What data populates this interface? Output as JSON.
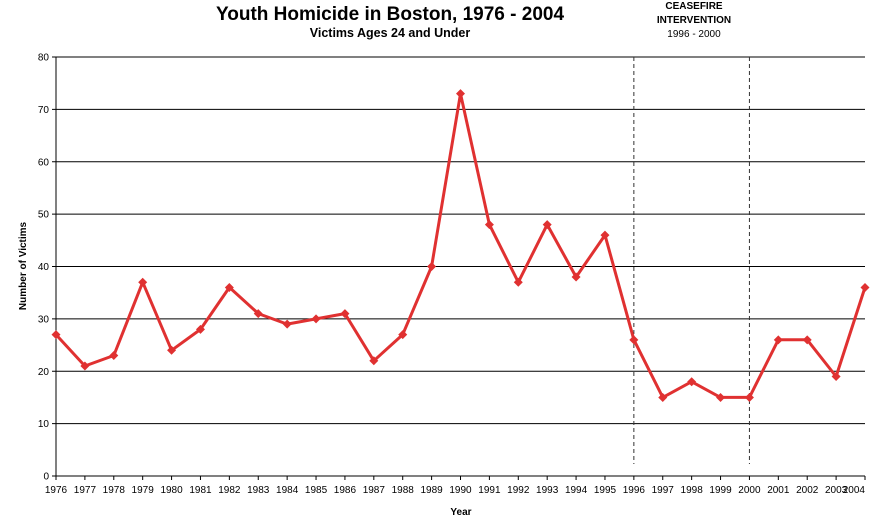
{
  "chart_data": {
    "type": "line",
    "title": "Youth Homicide in Boston, 1976 - 2004",
    "subtitle": "Victims Ages 24 and Under",
    "xlabel": "Year",
    "ylabel": "Number of Victims",
    "ylim": [
      0,
      80
    ],
    "yticks": [
      0,
      10,
      20,
      30,
      40,
      50,
      60,
      70,
      80
    ],
    "grid": "horizontal",
    "legend": "none",
    "line_color": "#e03131",
    "x": [
      "1976",
      "1977",
      "1978",
      "1979",
      "1980",
      "1981",
      "1982",
      "1983",
      "1984",
      "1985",
      "1986",
      "1987",
      "1988",
      "1989",
      "1990",
      "1991",
      "1992",
      "1993",
      "1994",
      "1995",
      "1996",
      "1997",
      "1998",
      "1999",
      "2000",
      "2001",
      "2002",
      "2003",
      "2004"
    ],
    "series": [
      {
        "values": [
          27,
          21,
          23,
          37,
          24,
          28,
          36,
          31,
          29,
          30,
          31,
          22,
          27,
          40,
          73,
          48,
          37,
          48,
          38,
          46,
          26,
          15,
          18,
          15,
          15,
          26,
          26,
          19,
          36
        ]
      }
    ],
    "annotation": {
      "line1": "CEASEFIRE",
      "line2": "INTERVENTION",
      "range_label": "1996 - 2000",
      "start": "1996",
      "end": "2000"
    }
  }
}
